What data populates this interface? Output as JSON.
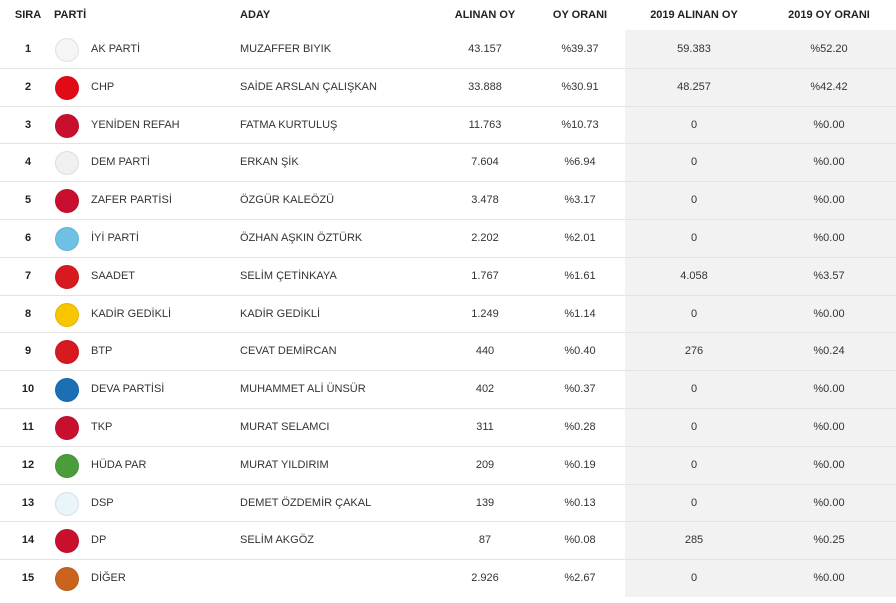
{
  "table": {
    "headers": [
      "SIRA",
      "PARTİ",
      "ADAY",
      "ALINAN OY",
      "OY ORANI",
      "2019 ALINAN OY",
      "2019 OY ORANI"
    ],
    "rows": [
      [
        1,
        "AK PARTİ",
        "MUZAFFER BIYIK",
        "43.157",
        "%39.37",
        "59.383",
        "%52.20"
      ],
      [
        2,
        "CHP",
        "SAİDE ARSLAN ÇALIŞKAN",
        "33.888",
        "%30.91",
        "48.257",
        "%42.42"
      ],
      [
        3,
        "YENİDEN REFAH",
        "FATMA KURTULUŞ",
        "11.763",
        "%10.73",
        0,
        "%0.00"
      ],
      [
        4,
        "DEM PARTİ",
        "ERKAN ŞİK",
        "7.604",
        "%6.94",
        0,
        "%0.00"
      ],
      [
        5,
        "ZAFER PARTİSİ",
        "ÖZGÜR KALEÖZÜ",
        "3.478",
        "%3.17",
        0,
        "%0.00"
      ],
      [
        6,
        "İYİ PARTİ",
        "ÖZHAN AŞKIN ÖZTÜRK",
        "2.202",
        "%2.01",
        0,
        "%0.00"
      ],
      [
        7,
        "SAADET",
        "SELİM ÇETİNKAYA",
        "1.767",
        "%1.61",
        "4.058",
        "%3.57"
      ],
      [
        8,
        "KADİR GEDİKLİ",
        "KADİR GEDİKLİ",
        "1.249",
        "%1.14",
        0,
        "%0.00"
      ],
      [
        9,
        "BTP",
        "CEVAT DEMİRCAN",
        440,
        "%0.40",
        276,
        "%0.24"
      ],
      [
        10,
        "DEVA PARTİSİ",
        "MUHAMMET ALİ ÜNSÜR",
        402,
        "%0.37",
        0,
        "%0.00"
      ],
      [
        11,
        "TKP",
        "MURAT SELAMCI",
        311,
        "%0.28",
        0,
        "%0.00"
      ],
      [
        12,
        "HÜDA PAR",
        "MURAT YILDIRIM",
        209,
        "%0.19",
        0,
        "%0.00"
      ],
      [
        13,
        "DSP",
        "DEMET ÖZDEMİR ÇAKAL",
        139,
        "%0.13",
        0,
        "%0.00"
      ],
      [
        14,
        "DP",
        "SELİM AKGÖZ",
        87,
        "%0.08",
        285,
        "%0.25"
      ],
      [
        15,
        "DİĞER",
        null,
        "2.926",
        "%2.67",
        0,
        "%0.00"
      ]
    ]
  }
}
